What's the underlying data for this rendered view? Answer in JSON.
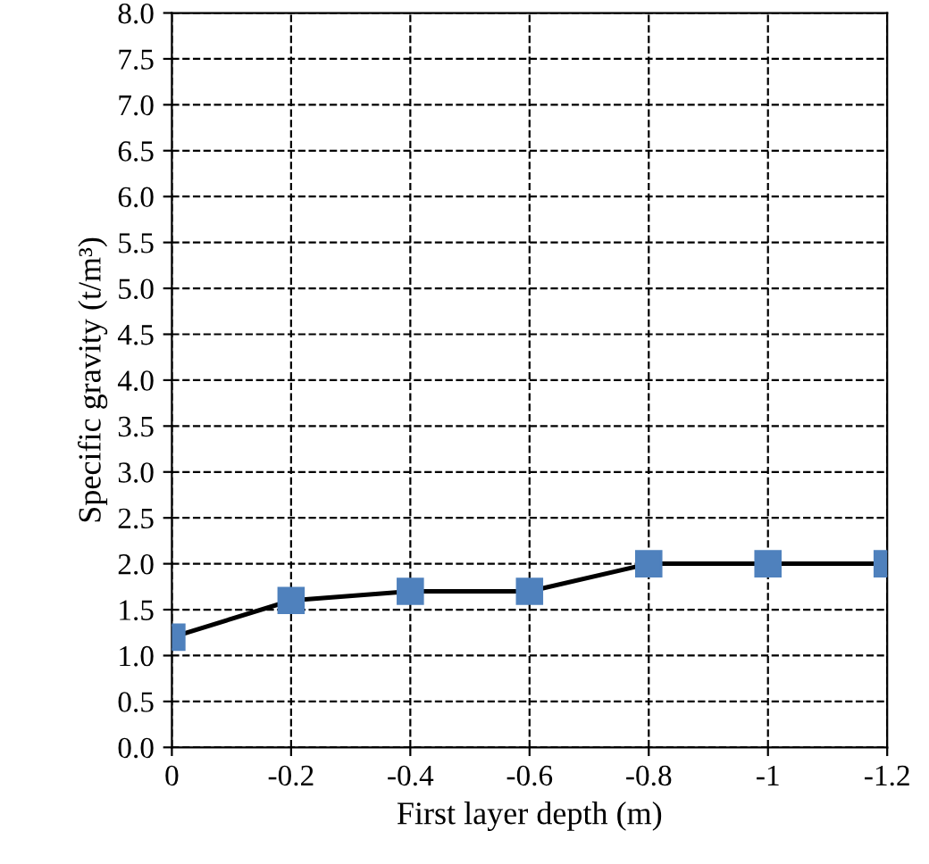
{
  "chart_data": {
    "type": "line",
    "xlabel": "First layer depth (m)",
    "ylabel": "Specific gravity (t/m³)",
    "x": [
      0,
      -0.2,
      -0.4,
      -0.6,
      -0.8,
      -1,
      -1.2
    ],
    "series": [
      {
        "color": "#4f81bd",
        "values": [
          1.2,
          1.6,
          1.7,
          1.7,
          2.0,
          2.0,
          2.0
        ]
      }
    ],
    "xlim": [
      0,
      -1.2
    ],
    "xticks": [
      0,
      -0.2,
      -0.4,
      -0.6,
      -0.8,
      -1,
      -1.2
    ],
    "ylim": [
      0.0,
      8.0
    ],
    "yticks": [
      {
        "value": 0,
        "label": "0.0"
      },
      0.5,
      {
        "value": 1,
        "label": "1.0"
      },
      1.5,
      {
        "value": 2,
        "label": "2.0"
      },
      2.5,
      {
        "value": 3,
        "label": "3.0"
      },
      3.5,
      {
        "value": 4,
        "label": "4.0"
      },
      4.5,
      {
        "value": 5,
        "label": "5.0"
      },
      5.5,
      {
        "value": 6,
        "label": "6.0"
      },
      6.5,
      {
        "value": 7,
        "label": "7.0"
      },
      7.5,
      {
        "value": 8,
        "label": "8.0"
      }
    ],
    "grid": true,
    "marker": "square",
    "line_style": "solid"
  }
}
